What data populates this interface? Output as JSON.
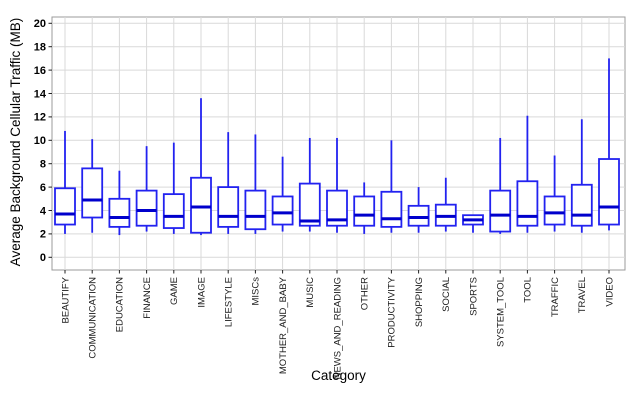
{
  "chart_data": {
    "type": "boxplot",
    "title": "",
    "xlabel": "Category",
    "ylabel": "Average Background Cellular Traffic (MB)",
    "ylim": [
      -1.1,
      20.6
    ],
    "yticks": [
      0,
      2,
      4,
      6,
      8,
      10,
      12,
      14,
      16,
      18,
      20
    ],
    "grid": true,
    "legend": false,
    "categories": [
      "BEAUTIFY",
      "COMMUNICATION",
      "EDUCATION",
      "FINANCE",
      "GAME",
      "IMAGE",
      "LIFESTYLE",
      "MISCs",
      "MOTHER_AND_BABY",
      "MUSIC",
      "NEWS_AND_READING",
      "OTHER",
      "PRODUCTIVITY",
      "SHOPPING",
      "SOCIAL",
      "SPORTS",
      "SYSTEM_TOOL",
      "TOOL",
      "TRAFFIC",
      "TRAVEL",
      "VIDEO"
    ],
    "boxes": [
      {
        "category": "BEAUTIFY",
        "low": 2.0,
        "q1": 2.8,
        "median": 3.7,
        "q3": 5.9,
        "high": 10.8
      },
      {
        "category": "COMMUNICATION",
        "low": 2.1,
        "q1": 3.4,
        "median": 4.9,
        "q3": 7.6,
        "high": 10.1
      },
      {
        "category": "EDUCATION",
        "low": 1.9,
        "q1": 2.6,
        "median": 3.4,
        "q3": 5.0,
        "high": 7.4
      },
      {
        "category": "FINANCE",
        "low": 2.2,
        "q1": 2.7,
        "median": 4.0,
        "q3": 5.7,
        "high": 9.5
      },
      {
        "category": "GAME",
        "low": 2.0,
        "q1": 2.5,
        "median": 3.5,
        "q3": 5.4,
        "high": 9.8
      },
      {
        "category": "IMAGE",
        "low": 1.9,
        "q1": 2.1,
        "median": 4.3,
        "q3": 6.8,
        "high": 13.6
      },
      {
        "category": "LIFESTYLE",
        "low": 2.0,
        "q1": 2.6,
        "median": 3.5,
        "q3": 6.0,
        "high": 10.7
      },
      {
        "category": "MISCs",
        "low": 2.0,
        "q1": 2.4,
        "median": 3.5,
        "q3": 5.7,
        "high": 10.5
      },
      {
        "category": "MOTHER_AND_BABY",
        "low": 2.2,
        "q1": 2.8,
        "median": 3.8,
        "q3": 5.2,
        "high": 8.6
      },
      {
        "category": "MUSIC",
        "low": 2.2,
        "q1": 2.7,
        "median": 3.1,
        "q3": 6.3,
        "high": 10.2
      },
      {
        "category": "NEWS_AND_READING",
        "low": 2.1,
        "q1": 2.7,
        "median": 3.2,
        "q3": 5.7,
        "high": 10.2
      },
      {
        "category": "OTHER",
        "low": 2.0,
        "q1": 2.7,
        "median": 3.6,
        "q3": 5.2,
        "high": 6.4
      },
      {
        "category": "PRODUCTIVITY",
        "low": 2.1,
        "q1": 2.6,
        "median": 3.3,
        "q3": 5.6,
        "high": 10.0
      },
      {
        "category": "SHOPPING",
        "low": 2.1,
        "q1": 2.7,
        "median": 3.4,
        "q3": 4.4,
        "high": 6.0
      },
      {
        "category": "SOCIAL",
        "low": 2.2,
        "q1": 2.7,
        "median": 3.5,
        "q3": 4.5,
        "high": 6.8
      },
      {
        "category": "SPORTS",
        "low": 2.1,
        "q1": 2.8,
        "median": 3.2,
        "q3": 3.6,
        "high": 3.6
      },
      {
        "category": "SYSTEM_TOOL",
        "low": 2.0,
        "q1": 2.2,
        "median": 3.6,
        "q3": 5.7,
        "high": 10.2
      },
      {
        "category": "TOOL",
        "low": 2.1,
        "q1": 2.7,
        "median": 3.5,
        "q3": 6.5,
        "high": 12.1
      },
      {
        "category": "TRAFFIC",
        "low": 2.2,
        "q1": 2.8,
        "median": 3.8,
        "q3": 5.2,
        "high": 8.7
      },
      {
        "category": "TRAVEL",
        "low": 2.1,
        "q1": 2.7,
        "median": 3.6,
        "q3": 6.2,
        "high": 11.8
      },
      {
        "category": "VIDEO",
        "low": 2.3,
        "q1": 2.8,
        "median": 4.3,
        "q3": 8.4,
        "high": 17.0
      }
    ]
  },
  "colors": {
    "box_stroke": "#2222f0",
    "median": "#0000cc",
    "whisker": "#2222f0",
    "grid": "#d9d9d9",
    "panel_border": "#9b9b9b",
    "tick": "#222222",
    "text": "#000000",
    "background": "#ffffff"
  }
}
